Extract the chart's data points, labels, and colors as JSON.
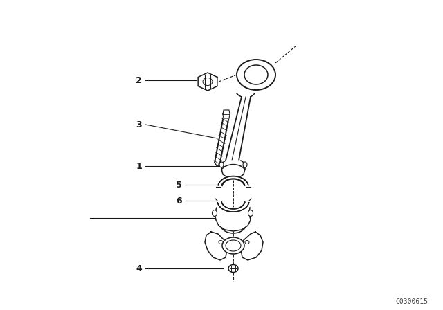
{
  "bg_color": "#ffffff",
  "line_color": "#1a1a1a",
  "fig_width": 6.4,
  "fig_height": 4.48,
  "dpi": 100,
  "watermark": "C0300615",
  "watermark_fontsize": 7
}
